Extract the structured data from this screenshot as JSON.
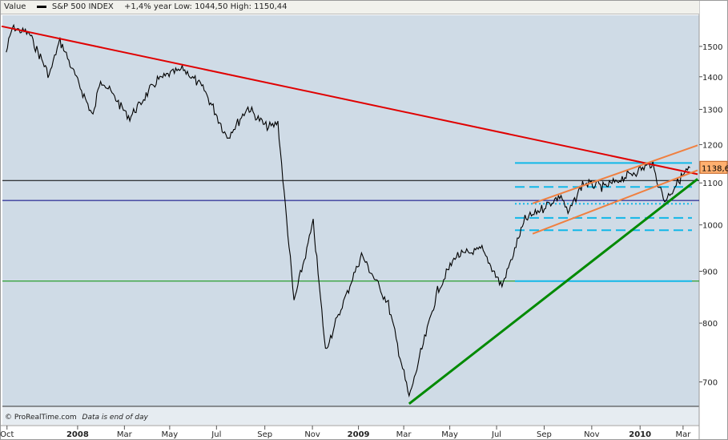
{
  "legend": {
    "value_label": "Value",
    "series_name": "S&P 500 INDEX",
    "stats": "+1,4%  year Low: 1044,50 High: 1150,44"
  },
  "footer": {
    "copyright": "© ProRealTime.com",
    "note": "Data is end of day"
  },
  "current_price_label": "1138,6",
  "colors": {
    "plot_background": "#cfdbe6",
    "price": "#000000",
    "long_trend_red": "#e00000",
    "uptrend_green": "#008a00",
    "channel_orange": "#f08040",
    "support_cyan": "#12b8e8",
    "level_navy": "#000080",
    "level_green": "#009000",
    "level_black": "#000000"
  },
  "chart_data": {
    "type": "line",
    "title": "",
    "series": [
      {
        "name": "S&P 500 INDEX",
        "x": [
          "2007-10-01",
          "2007-10-09",
          "2007-10-31",
          "2007-11-26",
          "2007-12-10",
          "2008-01-22",
          "2008-02-01",
          "2008-03-10",
          "2008-04-15",
          "2008-05-19",
          "2008-06-15",
          "2008-07-15",
          "2008-08-11",
          "2008-09-05",
          "2008-09-19",
          "2008-10-10",
          "2008-11-04",
          "2008-11-20",
          "2009-01-06",
          "2009-02-10",
          "2009-03-09",
          "2009-04-15",
          "2009-05-08",
          "2009-06-12",
          "2009-07-08",
          "2009-08-07",
          "2009-09-23",
          "2009-10-02",
          "2009-10-21",
          "2009-11-20",
          "2010-01-19",
          "2010-02-05",
          "2010-02-25",
          "2010-03-10"
        ],
        "values": [
          1480,
          1565,
          1545,
          1405,
          1520,
          1280,
          1395,
          1275,
          1390,
          1425,
          1360,
          1220,
          1305,
          1245,
          1260,
          840,
          1005,
          752,
          935,
          835,
          676,
          860,
          930,
          945,
          870,
          1010,
          1070,
          1025,
          1100,
          1090,
          1150,
          1055,
          1110,
          1138.6
        ]
      }
    ],
    "annotations": {
      "long_trendline": {
        "from": [
          "2007-09-25",
          1570
        ],
        "to": [
          "2010-03-20",
          1122
        ]
      },
      "uptrend_line": {
        "from": [
          "2009-03-09",
          666
        ],
        "to": [
          "2010-03-20",
          1110
        ]
      },
      "channel_upper": {
        "from": [
          "2009-08-17",
          1050
        ],
        "to": [
          "2010-03-20",
          1198
        ]
      },
      "channel_lower": {
        "from": [
          "2009-08-17",
          980
        ],
        "to": [
          "2010-03-20",
          1132
        ]
      },
      "horizontal_full": [
        {
          "value": 1106,
          "style": "solid-black"
        },
        {
          "value": 1057,
          "style": "solid-navy"
        },
        {
          "value": 880,
          "style": "solid-green"
        }
      ],
      "horizontal_short": [
        {
          "value": 1151,
          "style": "solid"
        },
        {
          "value": 1090,
          "style": "dashed"
        },
        {
          "value": 1049,
          "style": "dotted"
        },
        {
          "value": 1016,
          "style": "dashed"
        },
        {
          "value": 988,
          "style": "dashed"
        },
        {
          "value": 880,
          "style": "solid"
        }
      ]
    },
    "y_axis": {
      "scale": "log",
      "ylim": [
        655,
        1610
      ],
      "ticks": [
        700,
        800,
        900,
        1000,
        1100,
        1200,
        1300,
        1400,
        1500
      ],
      "tick_labels": [
        "700",
        "800",
        "900",
        "1000",
        "1100",
        "1200",
        "1300",
        "1400",
        "1500"
      ]
    },
    "x_axis": {
      "xlim": [
        "2007-09-26",
        "2010-03-22"
      ],
      "ticks": [
        {
          "date": "2007-10-02",
          "label": "Oct",
          "bold": false
        },
        {
          "date": "2008-01-02",
          "label": "2008",
          "bold": true
        },
        {
          "date": "2008-03-03",
          "label": "Mar",
          "bold": false
        },
        {
          "date": "2008-05-01",
          "label": "May",
          "bold": false
        },
        {
          "date": "2008-07-01",
          "label": "Jul",
          "bold": false
        },
        {
          "date": "2008-09-02",
          "label": "Sep",
          "bold": false
        },
        {
          "date": "2008-11-03",
          "label": "Nov",
          "bold": false
        },
        {
          "date": "2009-01-02",
          "label": "2009",
          "bold": true
        },
        {
          "date": "2009-03-02",
          "label": "Mar",
          "bold": false
        },
        {
          "date": "2009-05-01",
          "label": "May",
          "bold": false
        },
        {
          "date": "2009-07-01",
          "label": "Jul",
          "bold": false
        },
        {
          "date": "2009-09-01",
          "label": "Sep",
          "bold": false
        },
        {
          "date": "2009-11-02",
          "label": "Nov",
          "bold": false
        },
        {
          "date": "2010-01-04",
          "label": "2010",
          "bold": true
        },
        {
          "date": "2010-03-01",
          "label": "Mar",
          "bold": false
        }
      ]
    },
    "grid": false,
    "legend_placement": "top-left"
  }
}
